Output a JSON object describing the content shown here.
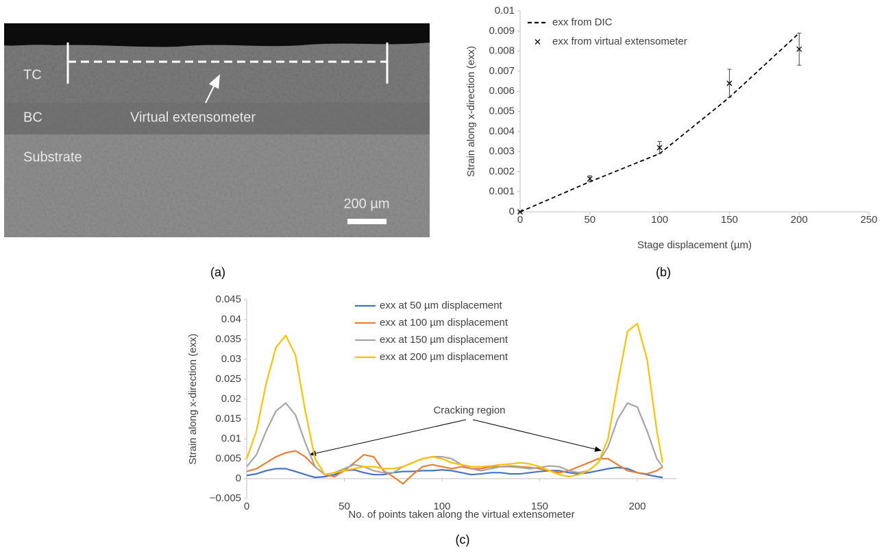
{
  "micrograph": {
    "labels": [
      "TC",
      "BC",
      "Substrate",
      "Virtual extensometer",
      "200 µm"
    ]
  },
  "panels": [
    "(a)",
    "(b)",
    "(c)"
  ],
  "chart_data": [
    {
      "type": "line",
      "x_label": "Stage displacement (µm)",
      "y_label": "Strain along x-direction (exx)",
      "x": [
        0,
        50,
        100,
        150,
        200
      ],
      "series": [
        {
          "name": "exx from DIC",
          "color": "#000000",
          "style": "dashed",
          "values": [
            0,
            0.0015,
            0.0029,
            0.0057,
            0.0089
          ]
        },
        {
          "name": "exx from virtual extensometer",
          "color": "#000000",
          "style": "marker",
          "marker": "x",
          "values": [
            0,
            0.00165,
            0.0032,
            0.0064,
            0.0081
          ],
          "errors": [
            0,
            0.00015,
            0.0003,
            0.0007,
            0.0008
          ]
        }
      ],
      "xlim": [
        0,
        250
      ],
      "xticks": [
        0,
        50,
        100,
        150,
        200,
        250
      ],
      "ylim": [
        0,
        0.01
      ],
      "yticks": [
        0,
        0.001,
        0.002,
        0.003,
        0.004,
        0.005,
        0.006,
        0.007,
        0.008,
        0.009,
        0.01
      ],
      "legend": "upper-left",
      "grid": false
    },
    {
      "type": "line",
      "x_label": "No. of points taken along the virtual extensometer",
      "y_label": "Strain along x-direction (exx)",
      "annotation": "Cracking region",
      "x": [
        0,
        5,
        10,
        15,
        20,
        25,
        30,
        35,
        40,
        45,
        50,
        55,
        60,
        65,
        70,
        75,
        80,
        85,
        90,
        95,
        100,
        105,
        110,
        115,
        120,
        125,
        130,
        135,
        140,
        145,
        150,
        155,
        160,
        165,
        170,
        175,
        180,
        185,
        190,
        195,
        200,
        205,
        210,
        213
      ],
      "series": [
        {
          "name": "exx at 50 µm displacement",
          "color": "#4472c4",
          "style": "solid",
          "values": [
            0.0008,
            0.0012,
            0.002,
            0.0025,
            0.0025,
            0.0018,
            0.001,
            0.0003,
            0.0005,
            0.001,
            0.002,
            0.0022,
            0.0015,
            0.001,
            0.001,
            0.0015,
            0.0018,
            0.0018,
            0.002,
            0.002,
            0.0022,
            0.002,
            0.0015,
            0.001,
            0.0012,
            0.0015,
            0.0015,
            0.0012,
            0.0012,
            0.0015,
            0.0018,
            0.002,
            0.002,
            0.0015,
            0.0012,
            0.0015,
            0.002,
            0.0025,
            0.0028,
            0.0025,
            0.0015,
            0.001,
            0.0005,
            0.0003
          ]
        },
        {
          "name": "exx at 100 µm displacement",
          "color": "#ed7d31",
          "style": "solid",
          "values": [
            0.0018,
            0.0025,
            0.004,
            0.0055,
            0.0065,
            0.007,
            0.0055,
            0.003,
            0.001,
            0.0005,
            0.002,
            0.004,
            0.006,
            0.0055,
            0.002,
            0.0005,
            -0.0013,
            0.001,
            0.003,
            0.0035,
            0.003,
            0.0025,
            0.003,
            0.0025,
            0.0025,
            0.003,
            0.003,
            0.0032,
            0.003,
            0.0028,
            0.0025,
            0.002,
            0.0015,
            0.002,
            0.003,
            0.004,
            0.005,
            0.005,
            0.0035,
            0.002,
            0.0015,
            0.0012,
            0.002,
            0.003
          ]
        },
        {
          "name": "exx at 150 µm displacement",
          "color": "#a5a5a5",
          "style": "solid",
          "values": [
            0.003,
            0.006,
            0.012,
            0.017,
            0.019,
            0.016,
            0.009,
            0.003,
            0.001,
            0.0015,
            0.0025,
            0.0035,
            0.003,
            0.002,
            0.0015,
            0.0015,
            0.003,
            0.004,
            0.005,
            0.0055,
            0.0055,
            0.005,
            0.0035,
            0.0025,
            0.002,
            0.0025,
            0.003,
            0.003,
            0.0028,
            0.0025,
            0.0028,
            0.0032,
            0.003,
            0.002,
            0.0015,
            0.002,
            0.004,
            0.008,
            0.015,
            0.019,
            0.018,
            0.012,
            0.005,
            0.003
          ]
        },
        {
          "name": "exx at 200 µm displacement",
          "color": "#ffc000",
          "style": "solid",
          "values": [
            0.005,
            0.012,
            0.024,
            0.033,
            0.036,
            0.031,
            0.017,
            0.005,
            0.001,
            0.0015,
            0.002,
            0.0025,
            0.003,
            0.003,
            0.0025,
            0.0025,
            0.003,
            0.004,
            0.005,
            0.0055,
            0.005,
            0.004,
            0.0035,
            0.003,
            0.003,
            0.0032,
            0.0035,
            0.0037,
            0.004,
            0.0037,
            0.003,
            0.002,
            0.001,
            0.0005,
            0.001,
            0.002,
            0.004,
            0.01,
            0.024,
            0.037,
            0.039,
            0.03,
            0.012,
            0.004
          ]
        }
      ],
      "xlim": [
        0,
        220
      ],
      "xticks": [
        0,
        50,
        100,
        150,
        200
      ],
      "ylim": [
        -0.005,
        0.045
      ],
      "yticks": [
        {
          "value": -0.005,
          "label": "−0.005"
        },
        0,
        0.005,
        0.01,
        0.015,
        0.02,
        0.025,
        0.03,
        0.035,
        0.04,
        0.045
      ],
      "legend": "upper-center",
      "grid": false
    }
  ]
}
